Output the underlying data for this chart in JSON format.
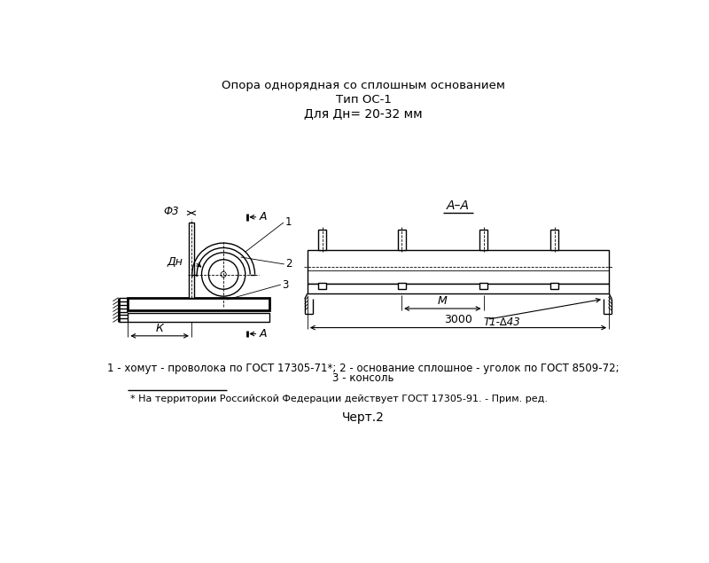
{
  "title1": "Опора однорядная со сплошным основанием",
  "title2": "Тип ОС-1",
  "title3": "Для Дн= 20-32 мм",
  "legend1": "1 - хомут - проволока по ГОСТ 17305-71*; 2 - основание сплошное - уголок по ГОСТ 8509-72;",
  "legend2": "3 - консоль",
  "footnote": "* На территории Российской Федерации действует ГОСТ 17305-91. - Прим. ред.",
  "caption": "Черт.2",
  "bg_color": "#ffffff",
  "line_color": "#000000",
  "lw": 1.0,
  "lw_thick": 2.0,
  "lw_thin": 0.6
}
